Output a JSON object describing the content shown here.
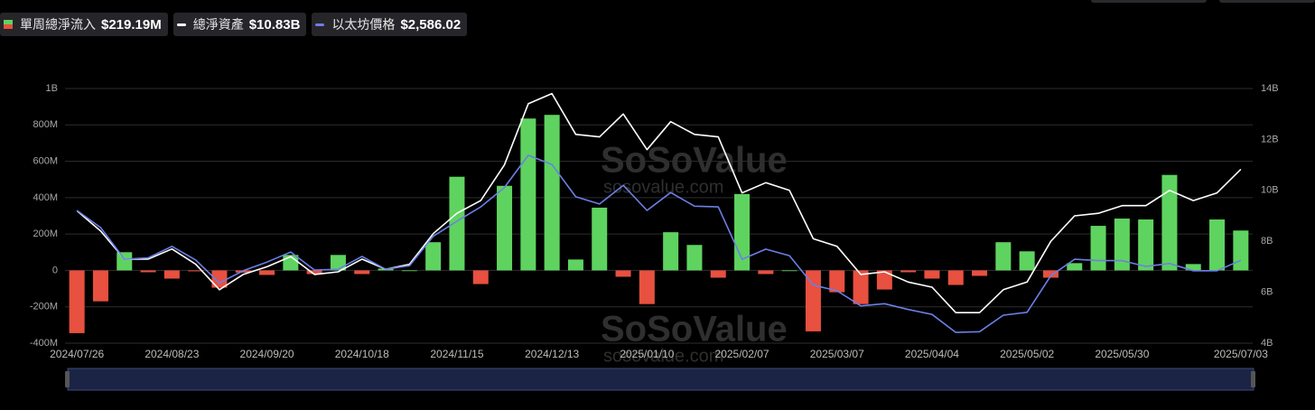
{
  "chart_data": {
    "type": "bar-line",
    "categories": [
      "2024/07/26",
      null,
      null,
      null,
      "2024/08/23",
      null,
      null,
      null,
      "2024/09/20",
      null,
      null,
      null,
      "2024/10/18",
      null,
      null,
      null,
      "2024/11/15",
      null,
      null,
      null,
      "2024/12/13",
      null,
      null,
      null,
      "2025/01/10",
      null,
      null,
      null,
      "2025/02/07",
      null,
      null,
      null,
      "2025/03/07",
      null,
      null,
      null,
      "2025/04/04",
      null,
      null,
      null,
      "2025/05/02",
      null,
      null,
      null,
      "2025/05/30",
      null,
      null,
      null,
      null,
      "2025/07/03"
    ],
    "series": [
      {
        "name": "單周總淨流入",
        "value_label": "$219.19M",
        "type": "bar",
        "color": "#5fd35f",
        "negative_color": "#e8503f",
        "values": [
          -345,
          -170,
          100,
          -10,
          -45,
          -5,
          -95,
          -12,
          -25,
          85,
          -20,
          85,
          -20,
          10,
          0,
          155,
          515,
          -75,
          465,
          835,
          855,
          60,
          345,
          -35,
          -185,
          210,
          140,
          -40,
          420,
          -20,
          0,
          -335,
          -120,
          -185,
          -105,
          -10,
          -45,
          -80,
          -30,
          155,
          105,
          -40,
          40,
          245,
          285,
          280,
          525,
          35,
          280,
          219.19
        ]
      },
      {
        "name": "總淨資產",
        "value_label": "$10.83B",
        "type": "line",
        "axis": "y2",
        "color": "#ffffff",
        "values": [
          9.2,
          8.4,
          7.3,
          7.3,
          7.7,
          7.1,
          6.1,
          6.7,
          7.0,
          7.4,
          6.7,
          6.8,
          7.3,
          6.9,
          7.1,
          8.3,
          9.1,
          9.6,
          11.0,
          13.4,
          13.8,
          12.2,
          12.1,
          13.0,
          11.6,
          12.7,
          12.2,
          12.1,
          9.9,
          10.3,
          10.0,
          8.1,
          7.8,
          6.7,
          6.8,
          6.4,
          6.2,
          5.2,
          5.2,
          6.1,
          6.4,
          8.0,
          9.0,
          9.1,
          9.4,
          9.4,
          10.0,
          9.6,
          9.9,
          10.83
        ]
      },
      {
        "name": "以太坊價格",
        "value_label": "$2,586.02",
        "type": "line",
        "axis": "y3",
        "color": "#6c7fe6",
        "values": [
          3280,
          3040,
          2600,
          2620,
          2780,
          2590,
          2270,
          2440,
          2560,
          2700,
          2450,
          2460,
          2640,
          2460,
          2510,
          2920,
          3130,
          3330,
          3600,
          4050,
          3920,
          3470,
          3370,
          3630,
          3280,
          3530,
          3340,
          3330,
          2600,
          2740,
          2650,
          2240,
          2160,
          1950,
          1980,
          1900,
          1830,
          1580,
          1590,
          1820,
          1860,
          2370,
          2600,
          2580,
          2580,
          2500,
          2540,
          2440,
          2440,
          2586.02
        ]
      }
    ],
    "ylim": [
      -400,
      1000
    ],
    "yticks": [
      {
        "value": -400,
        "label": "-400M"
      },
      {
        "value": -200,
        "label": "-200M"
      },
      0,
      {
        "value": 200,
        "label": "200M"
      },
      {
        "value": 400,
        "label": "400M"
      },
      {
        "value": 600,
        "label": "600M"
      },
      {
        "value": 800,
        "label": "800M"
      },
      {
        "value": 1000,
        "label": "1B"
      }
    ],
    "y2lim": [
      4,
      14
    ],
    "y2ticks": [
      {
        "value": 4,
        "label": "4B"
      },
      {
        "value": 6,
        "label": "6B"
      },
      {
        "value": 8,
        "label": "8B"
      },
      {
        "value": 10,
        "label": "10B"
      },
      {
        "value": 12,
        "label": "12B"
      },
      {
        "value": 14,
        "label": "14B"
      }
    ],
    "y3lim": [
      1430,
      4980
    ],
    "grid": true,
    "watermark": {
      "brand": "SoSoValue",
      "url": "sosovalue.com"
    }
  }
}
